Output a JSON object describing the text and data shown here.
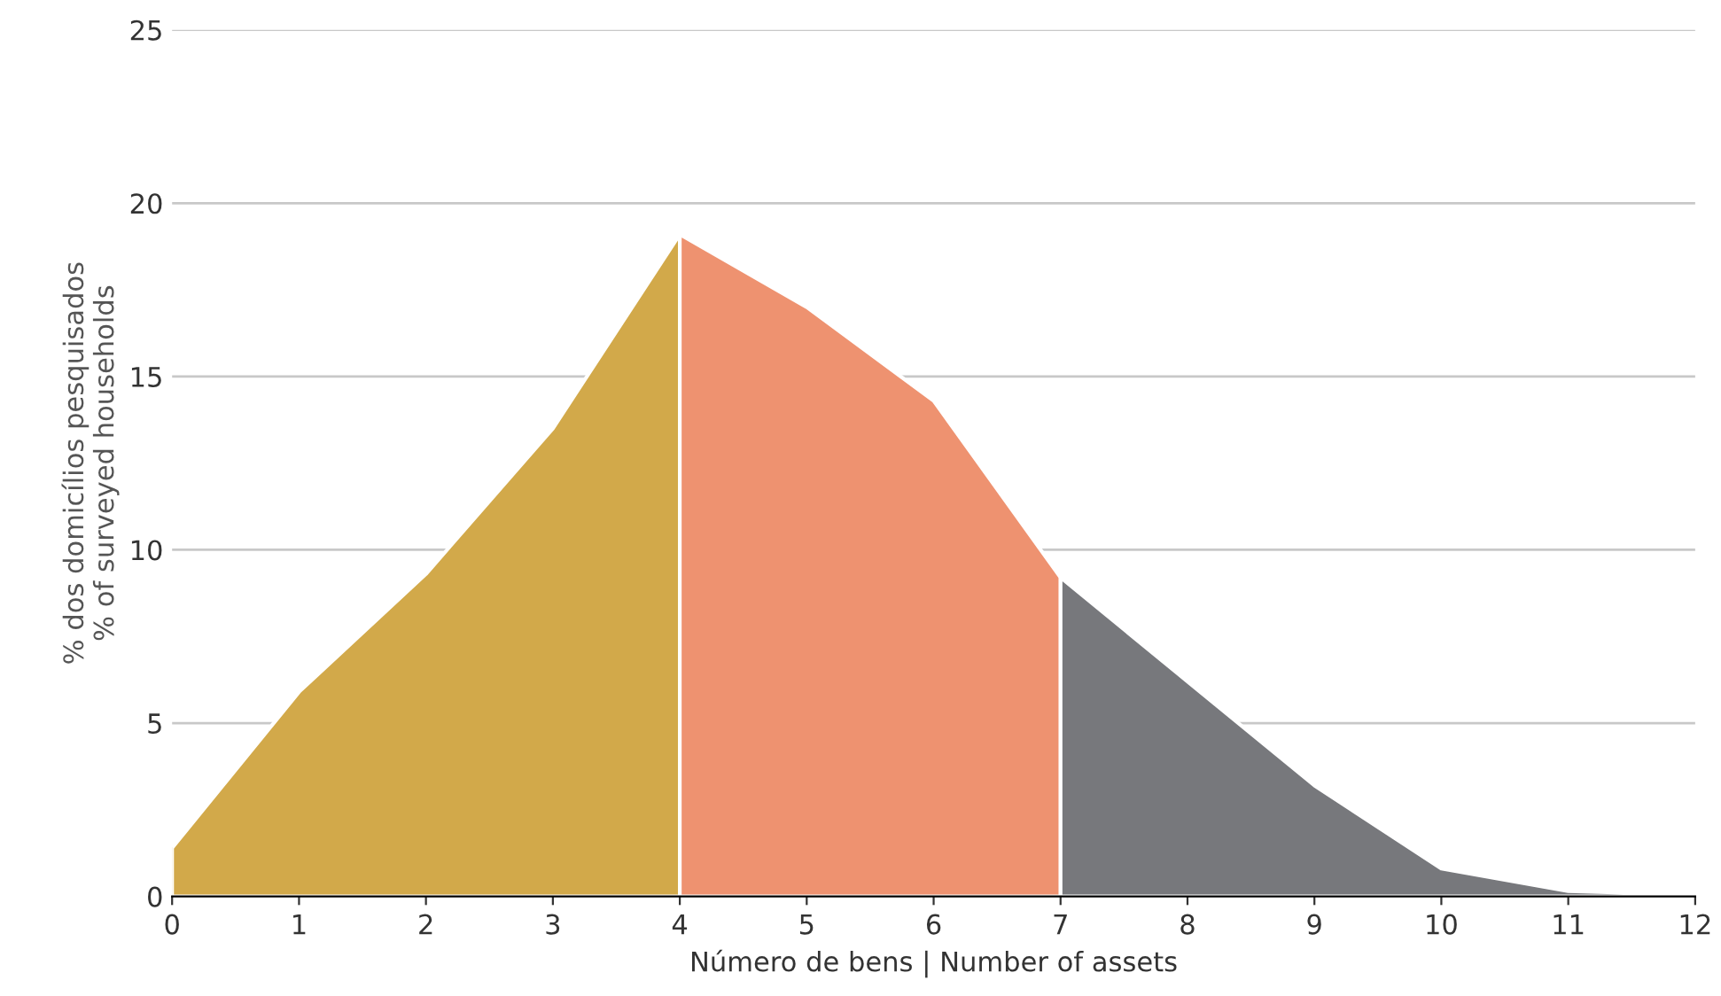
{
  "chart_data": {
    "type": "area",
    "xlabel": "Número de bens | Number of assets",
    "ylabel": "% dos domicílios pesquisados\n% of surveyed households",
    "series": [
      {
        "color": "#d2a94a",
        "x": [
          0,
          1,
          2,
          3,
          4
        ],
        "values": [
          1.4,
          5.9,
          9.3,
          13.5,
          19.1
        ]
      },
      {
        "color": "#ee9270",
        "x": [
          4,
          5,
          6,
          7
        ],
        "values": [
          19.1,
          17.0,
          14.3,
          9.2
        ]
      },
      {
        "color": "#77787c",
        "x": [
          7,
          8,
          9,
          10,
          11,
          12
        ],
        "values": [
          9.2,
          6.2,
          3.2,
          0.8,
          0.15,
          0.05
        ]
      }
    ],
    "xlim": [
      0,
      12
    ],
    "xticks": [
      0,
      1,
      2,
      3,
      4,
      5,
      6,
      7,
      8,
      9,
      10,
      11,
      12
    ],
    "ylim": [
      0,
      25
    ],
    "yticks": [
      0,
      5,
      10,
      15,
      20,
      25
    ],
    "grid": "y",
    "legend": false
  }
}
